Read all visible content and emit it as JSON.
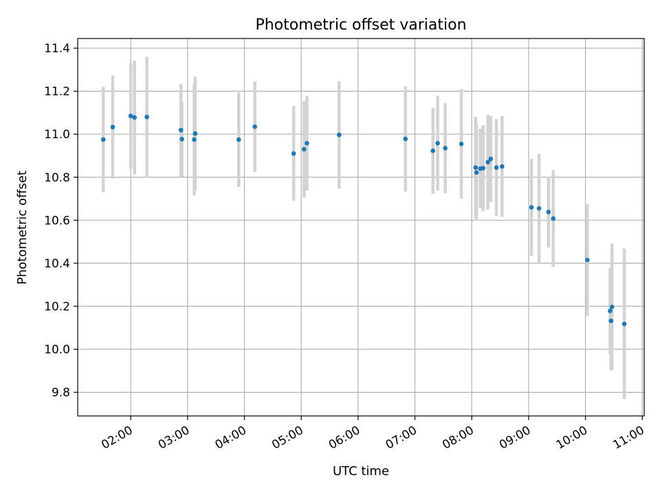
{
  "chart_data": {
    "type": "scatter",
    "title": "Photometric offset variation",
    "xlabel": "UTC time",
    "ylabel": "Photometric offset",
    "ylim": [
      9.69,
      11.445
    ],
    "xlim": [
      "01:04",
      "11:02"
    ],
    "grid": true,
    "yticks": [
      "9.8",
      "10.0",
      "10.2",
      "10.4",
      "10.6",
      "10.8",
      "11.0",
      "11.2",
      "11.4"
    ],
    "xticks": [
      "02:00",
      "03:00",
      "04:00",
      "05:00",
      "06:00",
      "07:00",
      "08:00",
      "09:00",
      "10:00",
      "11:00"
    ],
    "colors": {
      "point": "#1f77b4",
      "errorbar": "#d3d3d3",
      "grid": "#b0b0b0"
    },
    "series": [
      {
        "x": [
          "01:31",
          "01:41",
          "02:00",
          "02:04",
          "02:17",
          "02:53",
          "02:54",
          "03:07",
          "03:08",
          "03:54",
          "04:11",
          "04:52",
          "05:03",
          "05:06",
          "05:40",
          "06:50",
          "07:19",
          "07:24",
          "07:32",
          "07:49",
          "08:04",
          "08:05",
          "08:09",
          "08:12",
          "08:17",
          "08:20",
          "08:26",
          "08:32",
          "09:03",
          "09:11",
          "09:21",
          "09:26",
          "10:02",
          "10:26",
          "10:27",
          "10:28",
          "10:41"
        ],
        "y": [
          10.975,
          11.033,
          11.085,
          11.078,
          11.08,
          11.019,
          10.977,
          10.975,
          11.003,
          10.975,
          11.035,
          10.91,
          10.93,
          10.958,
          10.997,
          10.978,
          10.923,
          10.958,
          10.935,
          10.955,
          10.845,
          10.822,
          10.84,
          10.842,
          10.87,
          10.885,
          10.845,
          10.85,
          10.66,
          10.655,
          10.638,
          10.608,
          10.415,
          10.178,
          10.132,
          10.197,
          10.118
        ],
        "yerr": [
          0.245,
          0.24,
          0.245,
          0.265,
          0.28,
          0.215,
          0.175,
          0.26,
          0.265,
          0.22,
          0.21,
          0.22,
          0.225,
          0.22,
          0.25,
          0.245,
          0.2,
          0.22,
          0.21,
          0.255,
          0.235,
          0.225,
          0.185,
          0.2,
          0.22,
          0.2,
          0.225,
          0.235,
          0.225,
          0.255,
          0.165,
          0.225,
          0.26,
          0.2,
          0.23,
          0.295,
          0.35
        ]
      }
    ]
  }
}
